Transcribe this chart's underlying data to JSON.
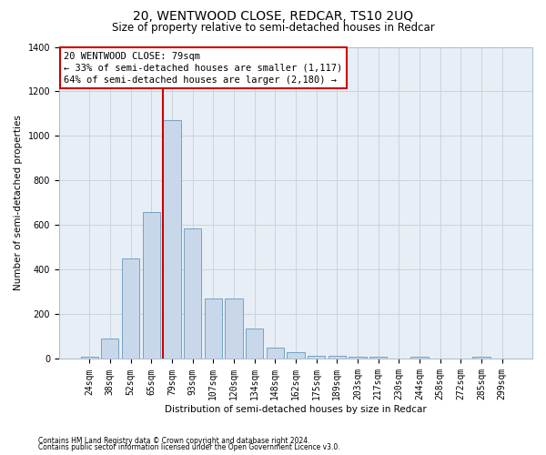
{
  "title": "20, WENTWOOD CLOSE, REDCAR, TS10 2UQ",
  "subtitle": "Size of property relative to semi-detached houses in Redcar",
  "xlabel": "Distribution of semi-detached houses by size in Redcar",
  "ylabel": "Number of semi-detached properties",
  "footnote1": "Contains HM Land Registry data © Crown copyright and database right 2024.",
  "footnote2": "Contains public sector information licensed under the Open Government Licence v3.0.",
  "annotation_title": "20 WENTWOOD CLOSE: 79sqm",
  "annotation_line1": "← 33% of semi-detached houses are smaller (1,117)",
  "annotation_line2": "64% of semi-detached houses are larger (2,180) →",
  "property_size_label": "79sqm",
  "bar_categories": [
    "24sqm",
    "38sqm",
    "52sqm",
    "65sqm",
    "79sqm",
    "93sqm",
    "107sqm",
    "120sqm",
    "134sqm",
    "148sqm",
    "162sqm",
    "175sqm",
    "189sqm",
    "203sqm",
    "217sqm",
    "230sqm",
    "244sqm",
    "258sqm",
    "272sqm",
    "285sqm",
    "299sqm"
  ],
  "bar_values": [
    10,
    90,
    450,
    660,
    1070,
    585,
    270,
    270,
    135,
    50,
    30,
    15,
    15,
    10,
    10,
    0,
    10,
    0,
    0,
    10,
    0
  ],
  "bar_color": "#c8d8ea",
  "bar_edgecolor": "#6699bb",
  "redline_color": "#cc0000",
  "annotation_box_edgecolor": "#cc0000",
  "annotation_box_facecolor": "#ffffff",
  "grid_color": "#c8d4e0",
  "background_color": "#e8eef5",
  "ylim": [
    0,
    1400
  ],
  "yticks": [
    0,
    200,
    400,
    600,
    800,
    1000,
    1200,
    1400
  ],
  "title_fontsize": 10,
  "subtitle_fontsize": 8.5,
  "axis_label_fontsize": 7.5,
  "tick_fontsize": 7,
  "annotation_fontsize": 7.5,
  "footnote_fontsize": 5.5
}
